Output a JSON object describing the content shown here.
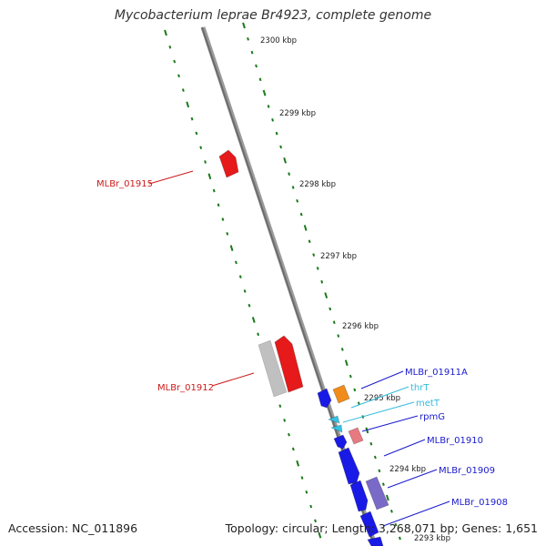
{
  "title": "Mycobacterium leprae Br4923, complete genome",
  "accession": "Accession: NC_011896",
  "summary": "Topology: circular; Length: 3,268,071 bp; Genes: 1,651",
  "colors": {
    "backbone": "#808080",
    "tick": "#1a7a1a",
    "forward_gene": "#1a1ae6",
    "reverse_gene": "#e61a1a",
    "pseudogene": "#c0c0c0",
    "trna": "#33c3e6",
    "rrna_other": "#f08c1a",
    "misc": "#e67a80",
    "repeat": "#7a6ac8",
    "label_forward": "#1a1acc",
    "label_reverse": "#cc1a1a",
    "label_trna": "#33bbdd"
  },
  "scale_labels": [
    "2300 kbp",
    "2299 kbp",
    "2298 kbp",
    "2297 kbp",
    "2296 kbp",
    "2295 kbp",
    "2294 kbp",
    "2293 kbp"
  ],
  "features": [
    {
      "label": "MLBr_01915",
      "kind": "reverse"
    },
    {
      "label": "MLBr_01912",
      "kind": "reverse"
    },
    {
      "label": "MLBr_01911A",
      "kind": "forward"
    },
    {
      "label": "thrT",
      "kind": "trna"
    },
    {
      "label": "metT",
      "kind": "trna"
    },
    {
      "label": "rpmG",
      "kind": "forward"
    },
    {
      "label": "MLBr_01910",
      "kind": "forward"
    },
    {
      "label": "MLBr_01909",
      "kind": "forward"
    },
    {
      "label": "MLBr_01908",
      "kind": "forward"
    }
  ]
}
